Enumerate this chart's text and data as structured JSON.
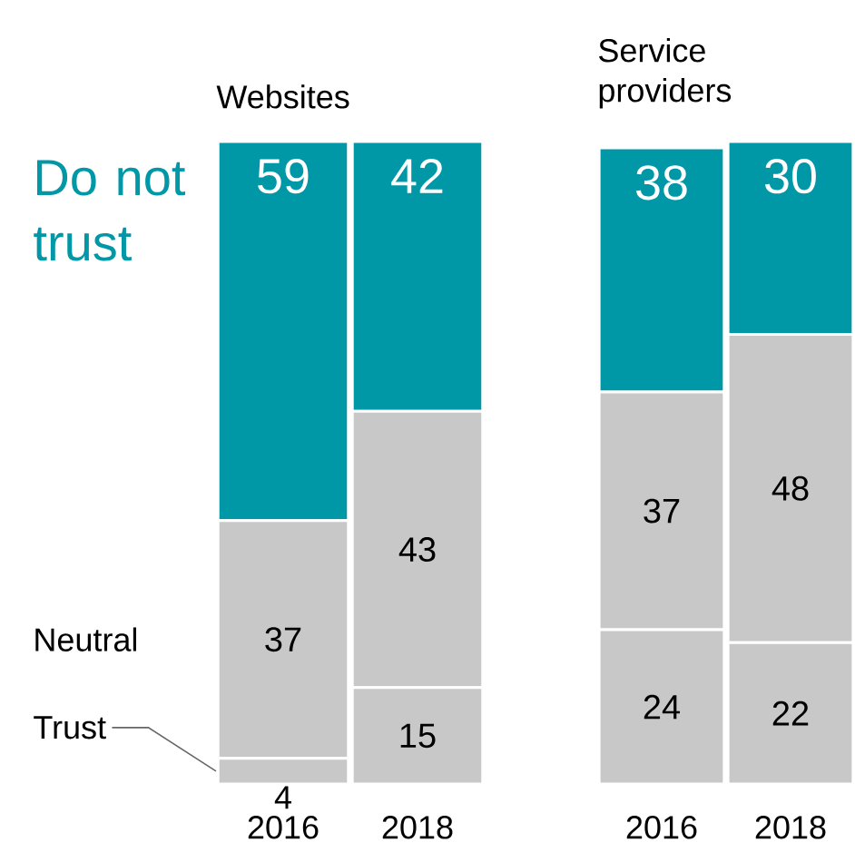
{
  "chart_data": [
    {
      "type": "bar",
      "stacked": true,
      "title": "Websites",
      "categories": [
        "2016",
        "2018"
      ],
      "series": [
        {
          "name": "Trust",
          "color": "#c8c8c8",
          "values": [
            4,
            15
          ]
        },
        {
          "name": "Neutral",
          "color": "#c8c8c8",
          "values": [
            37,
            43
          ]
        },
        {
          "name": "Do not trust",
          "color": "#0097a7",
          "values": [
            59,
            42
          ]
        }
      ],
      "data_labels": true,
      "tick_labels": "x"
    },
    {
      "type": "bar",
      "stacked": true,
      "title": "Service providers",
      "categories": [
        "2016",
        "2018"
      ],
      "series": [
        {
          "color": "#c8c8c8",
          "values": [
            24,
            22
          ]
        },
        {
          "color": "#c8c8c8",
          "values": [
            37,
            48
          ]
        },
        {
          "color": "#0097a7",
          "values": [
            38,
            30
          ]
        }
      ],
      "data_labels": true,
      "tick_labels": "x"
    }
  ]
}
